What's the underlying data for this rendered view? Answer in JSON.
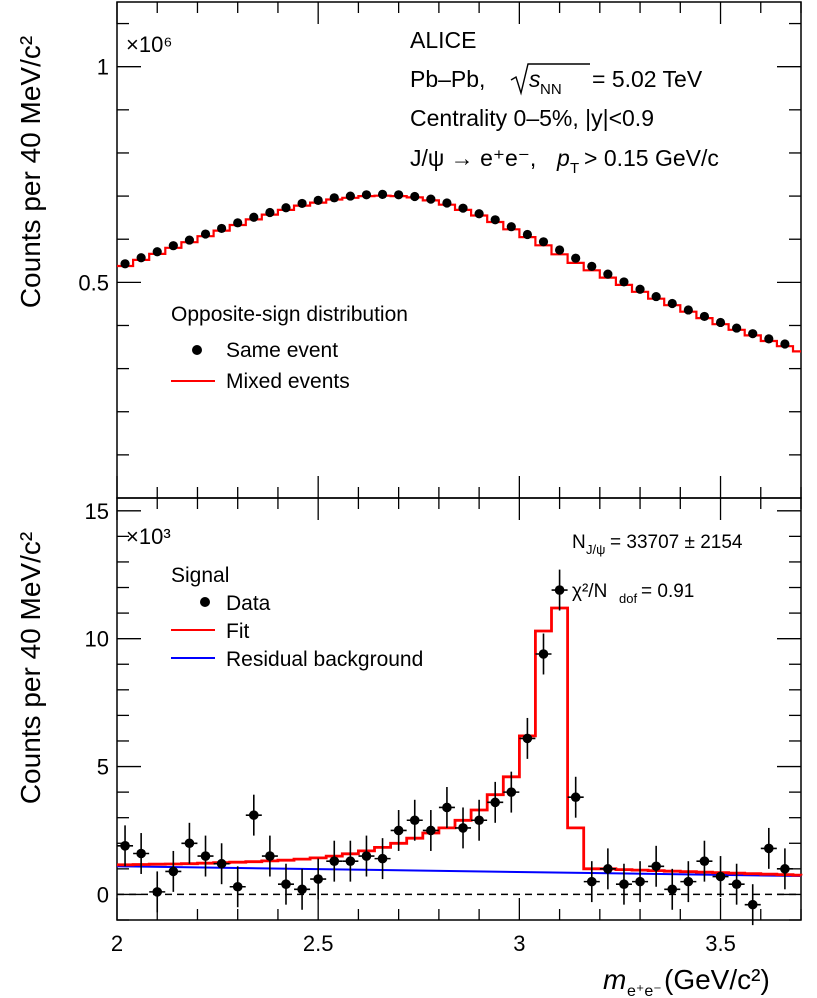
{
  "chart_data": [
    {
      "type": "line",
      "panel": "top",
      "ylabel": "Counts per 40 MeV/c²",
      "exponent_label": "×10⁶",
      "ylim": [
        0.0,
        1.15
      ],
      "xlim": [
        2.0,
        3.7
      ],
      "y_ticks": [
        {
          "value": 1.0,
          "label": "1"
        },
        {
          "value": 0.5,
          "label": "0.5"
        }
      ],
      "annotations": {
        "experiment": "ALICE",
        "system_prefix": "Pb–Pb,",
        "energy_value": "= 5.02 TeV",
        "centrality": "Centrality 0–5%, |y|<0.9",
        "decay_prefix": "J/ψ → e⁺e⁻,",
        "pt_cut": "> 0.15 GeV/c"
      },
      "legend": {
        "title": "Opposite-sign distribution",
        "entries": [
          "Same event",
          "Mixed events"
        ]
      },
      "series": [
        {
          "name": "Same event",
          "style": "markers",
          "color": "#000000",
          "x": [
            2.02,
            2.06,
            2.1,
            2.14,
            2.18,
            2.22,
            2.26,
            2.3,
            2.34,
            2.38,
            2.42,
            2.46,
            2.5,
            2.54,
            2.58,
            2.62,
            2.66,
            2.7,
            2.74,
            2.78,
            2.82,
            2.86,
            2.9,
            2.94,
            2.98,
            3.02,
            3.06,
            3.1,
            3.14,
            3.18,
            3.22,
            3.26,
            3.3,
            3.34,
            3.38,
            3.42,
            3.46,
            3.5,
            3.54,
            3.58,
            3.62,
            3.66
          ],
          "values": [
            0.543,
            0.557,
            0.571,
            0.585,
            0.598,
            0.612,
            0.625,
            0.638,
            0.651,
            0.662,
            0.673,
            0.683,
            0.69,
            0.696,
            0.7,
            0.703,
            0.704,
            0.703,
            0.699,
            0.693,
            0.684,
            0.672,
            0.659,
            0.645,
            0.629,
            0.611,
            0.594,
            0.575,
            0.556,
            0.537,
            0.519,
            0.501,
            0.484,
            0.467,
            0.451,
            0.436,
            0.421,
            0.407,
            0.394,
            0.381,
            0.369,
            0.357
          ]
        },
        {
          "name": "Mixed events",
          "style": "histogram",
          "color": "#ff0000",
          "x": [
            2.02,
            2.06,
            2.1,
            2.14,
            2.18,
            2.22,
            2.26,
            2.3,
            2.34,
            2.38,
            2.42,
            2.46,
            2.5,
            2.54,
            2.58,
            2.62,
            2.66,
            2.7,
            2.74,
            2.78,
            2.82,
            2.86,
            2.9,
            2.94,
            2.98,
            3.02,
            3.06,
            3.1,
            3.14,
            3.18,
            3.22,
            3.26,
            3.3,
            3.34,
            3.38,
            3.42,
            3.46,
            3.5,
            3.54,
            3.58,
            3.62,
            3.66,
            3.7
          ],
          "values": [
            0.538,
            0.552,
            0.566,
            0.58,
            0.593,
            0.607,
            0.62,
            0.633,
            0.646,
            0.657,
            0.668,
            0.678,
            0.685,
            0.692,
            0.696,
            0.7,
            0.701,
            0.7,
            0.697,
            0.69,
            0.68,
            0.668,
            0.655,
            0.64,
            0.623,
            0.605,
            0.586,
            0.565,
            0.545,
            0.528,
            0.511,
            0.494,
            0.478,
            0.462,
            0.447,
            0.432,
            0.417,
            0.403,
            0.39,
            0.377,
            0.364,
            0.352,
            0.34
          ]
        }
      ]
    },
    {
      "type": "line",
      "panel": "bottom",
      "ylabel": "Counts per 40 MeV/c²",
      "exponent_label": "×10³",
      "xlabel_main": "m",
      "xlabel_sub": "e⁺e⁻",
      "xlabel_units": " (GeV/c²)",
      "ylim": [
        -1.0,
        15.5
      ],
      "xlim": [
        2.0,
        3.7
      ],
      "x_ticks": [
        {
          "value": 2.0,
          "label": "2"
        },
        {
          "value": 2.5,
          "label": "2.5"
        },
        {
          "value": 3.0,
          "label": "3"
        },
        {
          "value": 3.5,
          "label": "3.5"
        }
      ],
      "y_ticks": [
        {
          "value": 0,
          "label": "0"
        },
        {
          "value": 5,
          "label": "5"
        },
        {
          "value": 10,
          "label": "10"
        },
        {
          "value": 15,
          "label": "15"
        }
      ],
      "annotations": {
        "yield_label": "N",
        "yield_sub": "J/ψ",
        "yield_value": " = 33707 ± 2154",
        "chi2_label": "χ²/N",
        "chi2_sub": "dof",
        "chi2_value": " = 0.91"
      },
      "legend": {
        "title": "Signal",
        "entries": [
          "Data",
          "Fit",
          "Residual background"
        ]
      },
      "series": [
        {
          "name": "Data",
          "style": "markers",
          "color": "#000000",
          "x": [
            2.02,
            2.06,
            2.1,
            2.14,
            2.18,
            2.22,
            2.26,
            2.3,
            2.34,
            2.38,
            2.42,
            2.46,
            2.5,
            2.54,
            2.58,
            2.62,
            2.66,
            2.7,
            2.74,
            2.78,
            2.82,
            2.86,
            2.9,
            2.94,
            2.98,
            3.02,
            3.06,
            3.1,
            3.14,
            3.18,
            3.22,
            3.26,
            3.3,
            3.34,
            3.38,
            3.42,
            3.46,
            3.5,
            3.54,
            3.58,
            3.62,
            3.66
          ],
          "values": [
            1.9,
            1.6,
            0.1,
            0.9,
            2.0,
            1.5,
            1.2,
            0.3,
            3.1,
            1.5,
            0.4,
            0.2,
            0.6,
            1.3,
            1.3,
            1.5,
            1.4,
            2.5,
            2.9,
            2.5,
            3.4,
            2.6,
            2.9,
            3.6,
            4.0,
            6.1,
            9.4,
            11.9,
            3.8,
            0.5,
            1.0,
            0.4,
            0.5,
            1.1,
            0.2,
            0.5,
            1.3,
            0.7,
            0.4,
            -0.4,
            1.8,
            1.0
          ],
          "errors": [
            0.8,
            0.8,
            0.8,
            0.8,
            0.8,
            0.8,
            0.8,
            0.8,
            0.8,
            0.8,
            0.8,
            0.8,
            0.8,
            0.8,
            0.8,
            0.8,
            0.8,
            0.8,
            0.8,
            0.8,
            0.8,
            0.8,
            0.8,
            0.8,
            0.8,
            0.8,
            0.8,
            0.8,
            0.8,
            0.8,
            0.8,
            0.8,
            0.8,
            0.8,
            0.8,
            0.8,
            0.8,
            0.8,
            0.8,
            0.8,
            0.8,
            0.8
          ]
        },
        {
          "name": "Fit",
          "style": "histogram",
          "color": "#ff0000",
          "x": [
            2.0,
            2.04,
            2.08,
            2.12,
            2.16,
            2.2,
            2.24,
            2.28,
            2.32,
            2.36,
            2.4,
            2.44,
            2.48,
            2.52,
            2.56,
            2.6,
            2.64,
            2.68,
            2.72,
            2.76,
            2.8,
            2.84,
            2.88,
            2.92,
            2.96,
            3.0,
            3.04,
            3.08,
            3.12,
            3.16,
            3.2,
            3.24,
            3.28,
            3.32,
            3.36,
            3.4,
            3.44,
            3.48,
            3.52,
            3.56,
            3.6,
            3.64,
            3.68,
            3.7
          ],
          "values": [
            1.16,
            1.17,
            1.18,
            1.19,
            1.2,
            1.22,
            1.24,
            1.26,
            1.28,
            1.31,
            1.34,
            1.38,
            1.43,
            1.5,
            1.59,
            1.7,
            1.84,
            2.0,
            2.2,
            2.4,
            2.6,
            2.9,
            3.3,
            3.9,
            4.6,
            6.2,
            10.3,
            11.2,
            2.6,
            1.0,
            1.0,
            0.97,
            0.95,
            0.93,
            0.91,
            0.89,
            0.87,
            0.85,
            0.83,
            0.81,
            0.79,
            0.77,
            0.75,
            0.74
          ]
        },
        {
          "name": "Residual background",
          "style": "line",
          "color": "#0000ff",
          "x": [
            2.0,
            3.7
          ],
          "values": [
            1.1,
            0.72
          ]
        }
      ]
    }
  ]
}
